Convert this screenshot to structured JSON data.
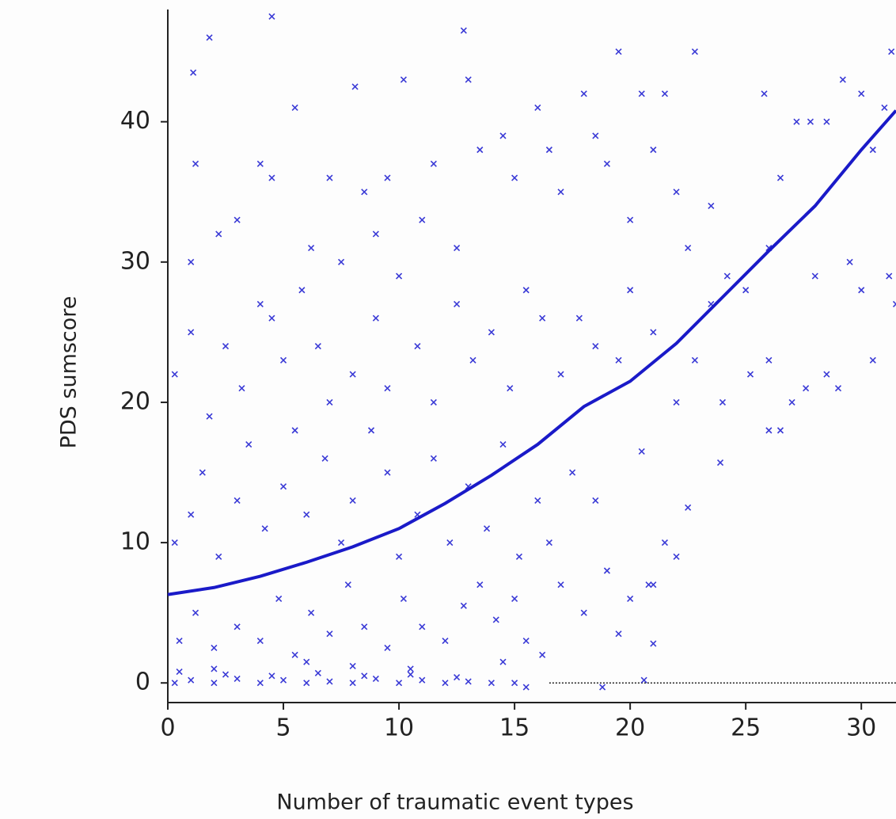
{
  "chart_data": {
    "type": "scatter",
    "xlabel": "Number of traumatic event types",
    "ylabel": "PDS sumscore",
    "xlim": [
      0,
      31.5
    ],
    "ylim": [
      -1.4,
      48
    ],
    "xticks": [
      0,
      5,
      10,
      15,
      20,
      25,
      30
    ],
    "yticks": [
      0,
      10,
      20,
      30,
      40
    ],
    "points": {
      "color": "#3a3ad6",
      "x": [
        0.3,
        1,
        2,
        3,
        4,
        5,
        6,
        7,
        8,
        9,
        10,
        11,
        12,
        13,
        14,
        15,
        0.5,
        2.5,
        4.5,
        6.5,
        8.5,
        10.5,
        12.5,
        15.5,
        18.8,
        20.6,
        0.5,
        1.2,
        2,
        3,
        4,
        4.8,
        5.5,
        6.2,
        7,
        7.8,
        8.5,
        9.5,
        10.2,
        11,
        12,
        12.8,
        13.5,
        14.2,
        15,
        15.5,
        16.2,
        14.5,
        10.5,
        6,
        2,
        8,
        0.3,
        1,
        1.5,
        2.2,
        3,
        3.5,
        4.2,
        5,
        5.5,
        6,
        6.8,
        7.5,
        8,
        8.8,
        9.5,
        10,
        10.8,
        11.5,
        12.2,
        13,
        13.8,
        14.5,
        15.2,
        16,
        16.5,
        17,
        18,
        19,
        20,
        21,
        22,
        18.5,
        17.5,
        0.3,
        1,
        1.8,
        2.5,
        3.2,
        4,
        4.5,
        5,
        5.8,
        6.5,
        7,
        7.5,
        8,
        9,
        9.5,
        10,
        10.8,
        11.5,
        12.5,
        13.2,
        14,
        14.8,
        15.5,
        16.2,
        17,
        17.8,
        18.5,
        19.5,
        20,
        21,
        22,
        22.8,
        23.5,
        24,
        25.2,
        26,
        26.5,
        27.6,
        28.5,
        29,
        30.5,
        31.5,
        31.2,
        1.2,
        1,
        2.2,
        3,
        4,
        4.5,
        5.5,
        6.2,
        7,
        8.5,
        9,
        9.5,
        10.2,
        11,
        11.5,
        12.5,
        13,
        13.5,
        14.5,
        15,
        16,
        16.5,
        17,
        18,
        18.5,
        19,
        19.5,
        20,
        20.5,
        21,
        21.5,
        22,
        22.5,
        22.8,
        23.5,
        24.2,
        25,
        25.8,
        26.5,
        27.2,
        27.8,
        28.5,
        29.2,
        30,
        30.5,
        31,
        31.3,
        29.5,
        30,
        26,
        28,
        1.8,
        4.5,
        1.1,
        8.1,
        12.8,
        23.9,
        20.5,
        21.5,
        22.5,
        20.8,
        21,
        19.5,
        26,
        27
      ],
      "y": [
        0,
        0.2,
        0,
        0.3,
        0,
        0.2,
        0,
        0.1,
        0,
        0.3,
        0,
        0.2,
        0,
        0.1,
        0,
        0,
        0.8,
        0.6,
        0.5,
        0.7,
        0.5,
        0.6,
        0.4,
        -0.3,
        -0.3,
        0.2,
        3,
        5,
        2.5,
        4,
        3,
        6,
        2,
        5,
        3.5,
        7,
        4,
        2.5,
        6,
        4,
        3,
        5.5,
        7,
        4.5,
        6,
        3,
        2,
        1.5,
        1,
        1.5,
        1,
        1.2,
        10,
        12,
        15,
        9,
        13,
        17,
        11,
        14,
        18,
        12,
        16,
        10,
        13,
        18,
        15,
        9,
        12,
        16,
        10,
        14,
        11,
        17,
        9,
        13,
        10,
        7,
        5,
        8,
        6,
        7,
        9,
        13,
        15,
        22,
        25,
        19,
        24,
        21,
        27,
        26,
        23,
        28,
        24,
        20,
        30,
        22,
        26,
        21,
        29,
        24,
        20,
        27,
        23,
        25,
        21,
        28,
        26,
        22,
        26,
        24,
        23,
        28,
        25,
        20,
        23,
        27,
        20,
        22,
        23,
        18,
        21,
        22,
        21,
        23,
        27,
        29,
        37,
        30,
        32,
        33,
        37,
        36,
        41,
        31,
        36,
        35,
        32,
        36,
        43,
        33,
        37,
        31,
        43,
        38,
        39,
        36,
        41,
        38,
        35,
        42,
        39,
        37,
        45,
        33,
        42,
        38,
        42,
        35,
        31,
        45,
        34,
        29,
        28,
        42,
        36,
        40,
        40,
        40,
        43,
        42,
        38,
        41,
        45,
        30,
        28,
        31,
        29,
        46,
        47.5,
        43.5,
        42.5,
        46.5,
        15.7,
        16.5,
        10,
        12.5,
        7,
        2.8,
        3.5,
        18,
        20
      ]
    },
    "fit": {
      "color": "#1a1ac8",
      "x": [
        0,
        2,
        4,
        6,
        8,
        10,
        12,
        14,
        16,
        18,
        20,
        22,
        24,
        26,
        28,
        30,
        31.5
      ],
      "y": [
        6.3,
        6.8,
        7.6,
        8.6,
        9.7,
        11,
        12.8,
        14.8,
        17,
        19.7,
        21.5,
        24.2,
        27.5,
        30.8,
        34,
        38,
        40.8
      ]
    },
    "hline": {
      "y": 0,
      "xmin": 16.5
    }
  }
}
